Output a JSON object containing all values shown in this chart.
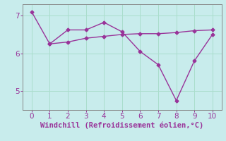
{
  "line1_x": [
    0,
    1,
    2,
    3,
    4,
    5,
    6,
    7,
    8,
    9,
    10
  ],
  "line1_y": [
    7.1,
    6.25,
    6.62,
    6.62,
    6.82,
    6.57,
    6.05,
    5.7,
    4.75,
    5.8,
    6.5
  ],
  "line2_x": [
    1,
    2,
    3,
    4,
    5,
    6,
    7,
    8,
    9,
    10
  ],
  "line2_y": [
    6.25,
    6.3,
    6.4,
    6.45,
    6.5,
    6.52,
    6.52,
    6.55,
    6.6,
    6.62
  ],
  "line_color": "#993399",
  "bg_color": "#c8ecec",
  "grid_color": "#aaddcc",
  "xlabel": "Windchill (Refroidissement éolien,°C)",
  "xlabel_color": "#993399",
  "tick_color": "#993399",
  "spine_color": "#888888",
  "xlim": [
    -0.5,
    10.5
  ],
  "ylim": [
    4.5,
    7.3
  ],
  "yticks": [
    5,
    6,
    7
  ],
  "xticks": [
    0,
    1,
    2,
    3,
    4,
    5,
    6,
    7,
    8,
    9,
    10
  ],
  "marker": "D",
  "markersize": 2.5,
  "linewidth": 1.0,
  "xlabel_fontsize": 7.5,
  "tick_fontsize": 7.5
}
